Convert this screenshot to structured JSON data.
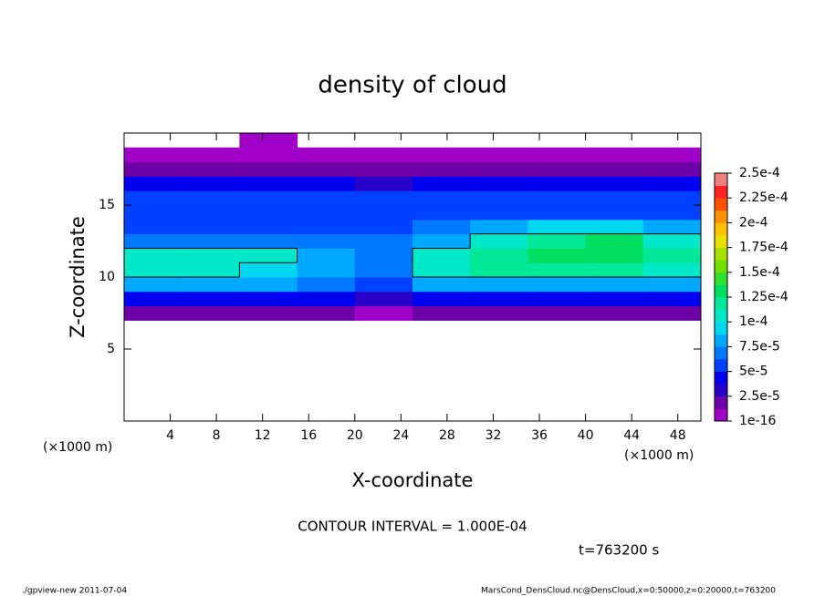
{
  "chart_data": {
    "type": "heatmap",
    "title": "density of cloud",
    "x_label": "X-coordinate",
    "y_label": "Z-coordinate",
    "x_unit_label": "(×1000 m)",
    "x": [
      0,
      5,
      10,
      15,
      20,
      25,
      30,
      35,
      40,
      45,
      50
    ],
    "z": [
      7,
      8,
      9,
      10,
      11,
      12,
      13,
      14,
      15,
      16,
      17,
      18,
      19,
      20
    ],
    "values": [
      [
        1.5e-05,
        1.5e-05,
        1.5e-05,
        1.5e-05,
        1.2e-05,
        1.5e-05,
        1.5e-05,
        1.5e-05,
        1.5e-05,
        1.5e-05
      ],
      [
        4e-05,
        4e-05,
        4e-05,
        4e-05,
        3.5e-05,
        4e-05,
        4e-05,
        4e-05,
        4e-05,
        4e-05
      ],
      [
        7.5e-05,
        7.5e-05,
        7.5e-05,
        7e-05,
        6e-05,
        7.5e-05,
        8e-05,
        8e-05,
        8e-05,
        7.5e-05
      ],
      [
        0.0001,
        0.0001,
        9e-05,
        8e-05,
        7e-05,
        0.0001,
        0.000115,
        0.000115,
        0.00012,
        0.00011
      ],
      [
        0.000105,
        0.00011,
        0.000105,
        8e-05,
        7e-05,
        0.0001,
        0.00012,
        0.00013,
        0.00013,
        0.00012
      ],
      [
        7e-05,
        7e-05,
        7e-05,
        6.5e-05,
        6.5e-05,
        8e-05,
        0.00011,
        0.00012,
        0.000125,
        0.00011
      ],
      [
        6e-05,
        6e-05,
        6e-05,
        6e-05,
        6e-05,
        7e-05,
        8e-05,
        9e-05,
        9e-05,
        8e-05
      ],
      [
        5.5e-05,
        5.5e-05,
        5.5e-05,
        5.5e-05,
        5.5e-05,
        6e-05,
        6e-05,
        6e-05,
        6e-05,
        6e-05
      ],
      [
        5e-05,
        5e-05,
        5e-05,
        5e-05,
        5e-05,
        5e-05,
        5e-05,
        5e-05,
        5e-05,
        5e-05
      ],
      [
        4e-05,
        4e-05,
        4e-05,
        4e-05,
        3.5e-05,
        4e-05,
        4e-05,
        4e-05,
        4e-05,
        4e-05
      ],
      [
        2e-05,
        2e-05,
        2e-05,
        2e-05,
        1.5e-05,
        2e-05,
        2e-05,
        2e-05,
        2e-05,
        2e-05
      ],
      [
        1e-05,
        1e-05,
        1e-05,
        1e-05,
        5e-06,
        1e-05,
        1e-05,
        1e-05,
        1e-05,
        1e-05
      ],
      [
        null,
        null,
        1e-06,
        null,
        null,
        null,
        null,
        null,
        null,
        null
      ]
    ],
    "xlim": [
      0,
      50
    ],
    "ylim": [
      0,
      20
    ],
    "xticks": [
      4,
      8,
      12,
      16,
      20,
      24,
      28,
      32,
      36,
      40,
      44,
      48
    ],
    "yticks": [
      5,
      10,
      15
    ],
    "colorbar_ticks": [
      1e-16,
      {
        "value": 2.5e-05,
        "label": "2.5e-5"
      },
      {
        "value": 5e-05,
        "label": "5e-5"
      },
      {
        "value": 7.5e-05,
        "label": "7.5e-5"
      },
      {
        "value": 0.0001,
        "label": "1e-4"
      },
      {
        "value": 0.000125,
        "label": "1.25e-4"
      },
      {
        "value": 0.00015,
        "label": "1.5e-4"
      },
      {
        "value": 0.000175,
        "label": "1.75e-4"
      },
      {
        "value": 0.0002,
        "label": "2e-4"
      },
      {
        "value": 0.000225,
        "label": "2.25e-4"
      },
      {
        "value": 0.00025,
        "label": "2.5e-4"
      }
    ],
    "colors": [
      "#a000c8",
      "#6e00a8",
      "#2800c8",
      "#0000f0",
      "#0040ff",
      "#0078ff",
      "#00a8ff",
      "#00d8f0",
      "#00e8c8",
      "#00e898",
      "#00e060",
      "#30e030",
      "#70e000",
      "#a8e000",
      "#e8e000",
      "#ffc000",
      "#ff9000",
      "#ff5000",
      "#ff2020",
      "#f08080"
    ],
    "contour_level": 0.0001,
    "contour_note": "CONTOUR INTERVAL = 1.000E-04",
    "time_label": "t=763200 s",
    "footer_left": "./gpview-new   2011-07-04",
    "footer_right": "MarsCond_DensCloud.nc@DensCloud,x=0:50000,z=0:20000,t=763200"
  }
}
